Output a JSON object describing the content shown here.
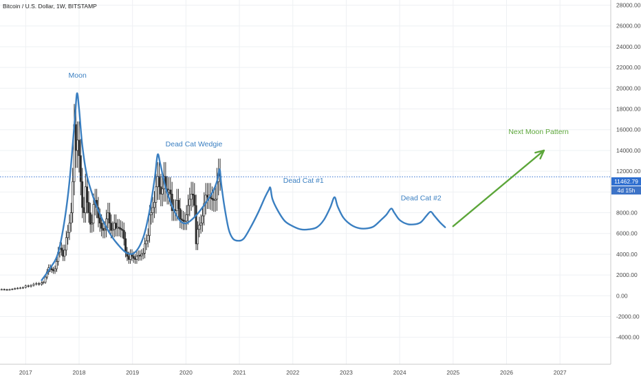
{
  "header": {
    "title": "Bitcoin / U.S. Dollar, 1W, BITSTAMP"
  },
  "price_tag": {
    "value": "11462.79",
    "countdown": "4d 15h"
  },
  "chart_data": {
    "type": "line",
    "title": "Bitcoin / U.S. Dollar, 1W, BITSTAMP",
    "x_axis": {
      "type": "time",
      "range": [
        2016.52,
        2027.95
      ],
      "ticks": [
        "2017",
        "2018",
        "2019",
        "2020",
        "2021",
        "2022",
        "2023",
        "2024",
        "2025",
        "2026",
        "2027"
      ]
    },
    "y_axis": {
      "position": "right",
      "range": [
        -6600,
        28500
      ],
      "ticks": [
        "-4000.00",
        "-2000.00",
        "0.00",
        "2000.00",
        "4000.00",
        "6000.00",
        "8000.00",
        "10000.00",
        "12000.00",
        "14000.00",
        "16000.00",
        "18000.00",
        "20000.00",
        "22000.00",
        "24000.00",
        "26000.00",
        "28000.00"
      ]
    },
    "grid": true,
    "current_price_line": 11462.79,
    "colors": {
      "candles": "#2b2b2b",
      "projection": "#3a7fc1",
      "arrow": "#5ca63a",
      "price_line": "#2f6fd0",
      "price_tag": "#2f6fd0",
      "countdown_tag": "#3d73c7"
    },
    "series": [
      {
        "type": "candlestick",
        "points": [
          [
            2016.55,
            620
          ],
          [
            2016.6,
            600
          ],
          [
            2016.65,
            580
          ],
          [
            2016.7,
            610
          ],
          [
            2016.75,
            640
          ],
          [
            2016.8,
            700
          ],
          [
            2016.85,
            740
          ],
          [
            2016.9,
            760
          ],
          [
            2016.95,
            800
          ],
          [
            2017.0,
            960
          ],
          [
            2017.05,
            900
          ],
          [
            2017.1,
            1000
          ],
          [
            2017.15,
            1120
          ],
          [
            2017.2,
            1180
          ],
          [
            2017.25,
            1100
          ],
          [
            2017.3,
            1250
          ],
          [
            2017.33,
            1300
          ],
          [
            2017.37,
            1800
          ],
          [
            2017.4,
            2300
          ],
          [
            2017.43,
            2700
          ],
          [
            2017.46,
            2600
          ],
          [
            2017.49,
            2500
          ],
          [
            2017.52,
            2400
          ],
          [
            2017.55,
            2600
          ],
          [
            2017.58,
            3300
          ],
          [
            2017.61,
            4200
          ],
          [
            2017.64,
            4600
          ],
          [
            2017.67,
            4400
          ],
          [
            2017.7,
            3800
          ],
          [
            2017.73,
            4400
          ],
          [
            2017.76,
            5600
          ],
          [
            2017.79,
            6100
          ],
          [
            2017.82,
            7000
          ],
          [
            2017.85,
            8000
          ],
          [
            2017.88,
            11000
          ],
          [
            2017.91,
            16500
          ],
          [
            2017.94,
            14000
          ],
          [
            2017.97,
            15000
          ],
          [
            2018.0,
            13500
          ],
          [
            2018.03,
            11000
          ],
          [
            2018.06,
            8500
          ],
          [
            2018.09,
            8000
          ],
          [
            2018.12,
            10500
          ],
          [
            2018.15,
            9000
          ],
          [
            2018.18,
            8000
          ],
          [
            2018.21,
            6900
          ],
          [
            2018.24,
            7000
          ],
          [
            2018.27,
            8800
          ],
          [
            2018.3,
            9200
          ],
          [
            2018.33,
            8500
          ],
          [
            2018.36,
            7500
          ],
          [
            2018.39,
            7000
          ],
          [
            2018.42,
            6500
          ],
          [
            2018.45,
            6300
          ],
          [
            2018.48,
            6400
          ],
          [
            2018.51,
            7400
          ],
          [
            2018.54,
            8000
          ],
          [
            2018.57,
            7000
          ],
          [
            2018.6,
            6300
          ],
          [
            2018.63,
            6400
          ],
          [
            2018.66,
            7000
          ],
          [
            2018.69,
            6500
          ],
          [
            2018.72,
            6600
          ],
          [
            2018.75,
            6500
          ],
          [
            2018.78,
            6400
          ],
          [
            2018.81,
            6300
          ],
          [
            2018.84,
            5500
          ],
          [
            2018.87,
            4200
          ],
          [
            2018.9,
            3800
          ],
          [
            2018.93,
            3500
          ],
          [
            2018.96,
            4000
          ],
          [
            2018.99,
            3800
          ],
          [
            2019.02,
            3600
          ],
          [
            2019.05,
            3500
          ],
          [
            2019.08,
            3800
          ],
          [
            2019.11,
            3900
          ],
          [
            2019.14,
            3850
          ],
          [
            2019.17,
            4000
          ],
          [
            2019.2,
            4100
          ],
          [
            2019.23,
            5000
          ],
          [
            2019.26,
            5300
          ],
          [
            2019.29,
            5800
          ],
          [
            2019.32,
            7800
          ],
          [
            2019.35,
            8000
          ],
          [
            2019.38,
            8500
          ],
          [
            2019.41,
            9000
          ],
          [
            2019.44,
            10500
          ],
          [
            2019.47,
            11500
          ],
          [
            2019.5,
            10500
          ],
          [
            2019.53,
            9800
          ],
          [
            2019.56,
            10300
          ],
          [
            2019.59,
            11500
          ],
          [
            2019.62,
            10300
          ],
          [
            2019.65,
            10000
          ],
          [
            2019.68,
            10200
          ],
          [
            2019.71,
            9800
          ],
          [
            2019.74,
            8200
          ],
          [
            2019.77,
            8300
          ],
          [
            2019.8,
            8200
          ],
          [
            2019.83,
            9200
          ],
          [
            2019.86,
            8400
          ],
          [
            2019.89,
            7400
          ],
          [
            2019.92,
            7300
          ],
          [
            2019.95,
            7200
          ],
          [
            2019.98,
            7200
          ],
          [
            2020.01,
            7800
          ],
          [
            2020.04,
            8700
          ],
          [
            2020.07,
            9300
          ],
          [
            2020.1,
            9800
          ],
          [
            2020.13,
            9700
          ],
          [
            2020.16,
            8700
          ],
          [
            2020.19,
            5000
          ],
          [
            2020.22,
            6400
          ],
          [
            2020.25,
            6800
          ],
          [
            2020.28,
            7000
          ],
          [
            2020.31,
            7700
          ],
          [
            2020.34,
            8900
          ],
          [
            2020.37,
            9700
          ],
          [
            2020.4,
            9500
          ],
          [
            2020.43,
            9700
          ],
          [
            2020.46,
            9400
          ],
          [
            2020.49,
            9300
          ],
          [
            2020.52,
            9200
          ],
          [
            2020.55,
            9300
          ],
          [
            2020.58,
            11000
          ],
          [
            2020.61,
            11800
          ],
          [
            2020.64,
            11500
          ]
        ]
      },
      {
        "type": "line",
        "points": [
          [
            2017.3,
            1500
          ],
          [
            2017.45,
            2600
          ],
          [
            2017.6,
            4000
          ],
          [
            2017.72,
            7000
          ],
          [
            2017.82,
            11000
          ],
          [
            2017.92,
            17000
          ],
          [
            2017.96,
            19500
          ],
          [
            2018.0,
            18000
          ],
          [
            2018.06,
            14500
          ],
          [
            2018.15,
            11500
          ],
          [
            2018.3,
            9000
          ],
          [
            2018.45,
            7200
          ],
          [
            2018.6,
            5800
          ],
          [
            2018.75,
            4800
          ],
          [
            2018.9,
            4100
          ],
          [
            2019.05,
            4200
          ],
          [
            2019.2,
            5600
          ],
          [
            2019.32,
            8200
          ],
          [
            2019.42,
            11500
          ],
          [
            2019.47,
            13600
          ],
          [
            2019.52,
            12700
          ],
          [
            2019.62,
            10400
          ],
          [
            2019.72,
            8900
          ],
          [
            2019.85,
            7500
          ],
          [
            2019.95,
            7000
          ],
          [
            2020.05,
            7100
          ],
          [
            2020.2,
            7800
          ],
          [
            2020.35,
            8800
          ],
          [
            2020.5,
            10000
          ],
          [
            2020.58,
            11000
          ],
          [
            2020.63,
            12200
          ],
          [
            2020.66,
            10800
          ],
          [
            2020.72,
            8600
          ],
          [
            2020.8,
            6400
          ],
          [
            2020.88,
            5500
          ],
          [
            2020.98,
            5300
          ],
          [
            2021.08,
            5500
          ],
          [
            2021.2,
            6500
          ],
          [
            2021.35,
            8000
          ],
          [
            2021.48,
            9500
          ],
          [
            2021.55,
            10200
          ],
          [
            2021.58,
            10400
          ],
          [
            2021.62,
            9300
          ],
          [
            2021.72,
            8200
          ],
          [
            2021.85,
            7200
          ],
          [
            2022.0,
            6700
          ],
          [
            2022.15,
            6400
          ],
          [
            2022.3,
            6400
          ],
          [
            2022.45,
            6600
          ],
          [
            2022.58,
            7300
          ],
          [
            2022.7,
            8500
          ],
          [
            2022.78,
            9500
          ],
          [
            2022.84,
            8600
          ],
          [
            2022.95,
            7500
          ],
          [
            2023.1,
            6800
          ],
          [
            2023.25,
            6500
          ],
          [
            2023.4,
            6500
          ],
          [
            2023.52,
            6700
          ],
          [
            2023.65,
            7300
          ],
          [
            2023.75,
            7800
          ],
          [
            2023.84,
            8400
          ],
          [
            2023.9,
            8000
          ],
          [
            2024.0,
            7300
          ],
          [
            2024.15,
            6900
          ],
          [
            2024.3,
            6900
          ],
          [
            2024.4,
            7100
          ],
          [
            2024.5,
            7700
          ],
          [
            2024.58,
            8100
          ],
          [
            2024.65,
            7700
          ],
          [
            2024.75,
            7100
          ],
          [
            2024.85,
            6600
          ]
        ]
      },
      {
        "type": "arrow",
        "from": [
          2025.0,
          6700
        ],
        "to": [
          2026.7,
          14000
        ]
      }
    ],
    "annotations": [
      {
        "text": "Moon",
        "x": 2017.97,
        "y": 21000
      },
      {
        "text": "Dead Cat Wedgie",
        "x": 2020.15,
        "y": 14400
      },
      {
        "text": "Dead Cat #1",
        "x": 2022.2,
        "y": 10900
      },
      {
        "text": "Dead Cat #2",
        "x": 2024.4,
        "y": 9200
      },
      {
        "text": "Next Moon Pattern",
        "x": 2026.6,
        "y": 15600
      }
    ]
  }
}
